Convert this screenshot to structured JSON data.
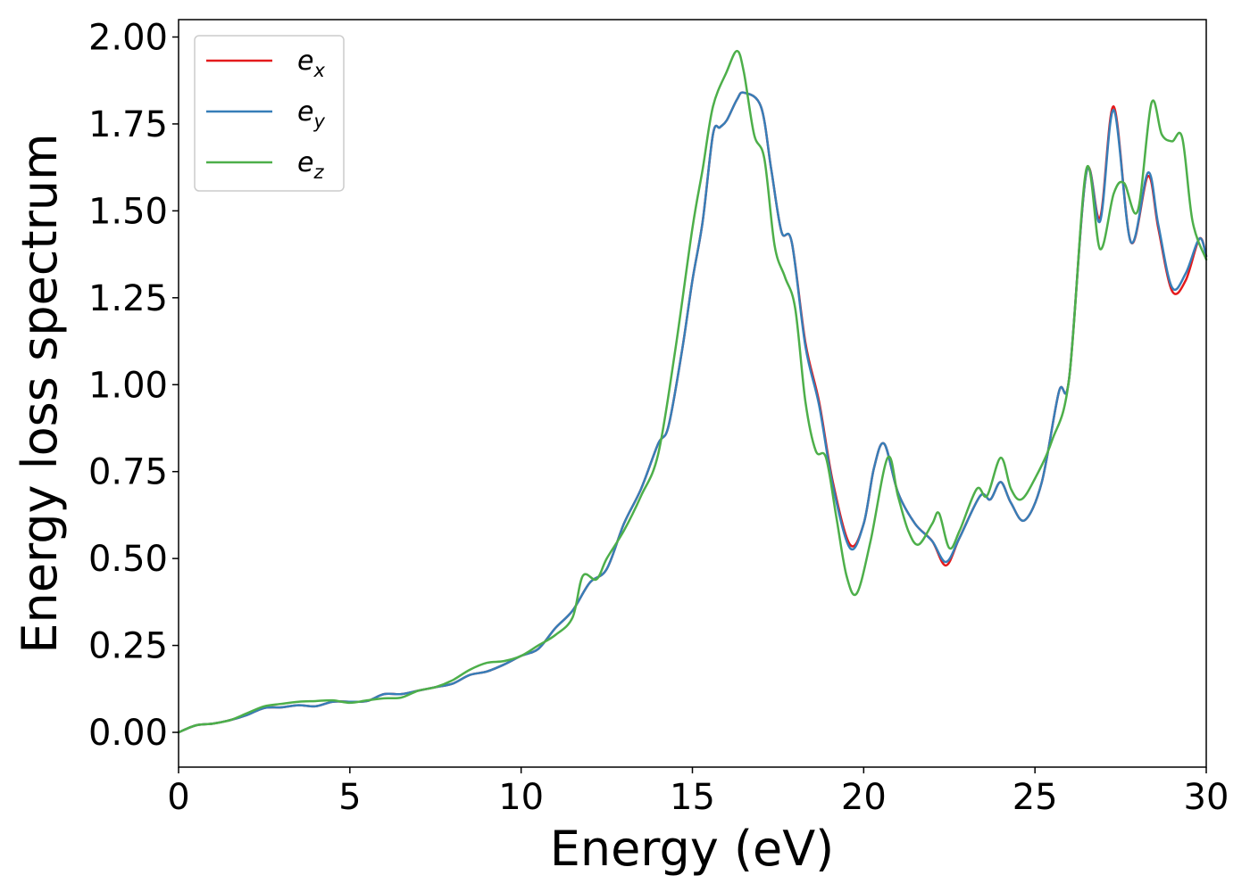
{
  "chart_data": {
    "type": "line",
    "title": "",
    "xlabel": "Energy (eV)",
    "ylabel": "Energy loss spectrum",
    "xlim": [
      0,
      30
    ],
    "ylim": [
      -0.1,
      2.05
    ],
    "xticks": [
      0,
      5,
      10,
      15,
      20,
      25,
      30
    ],
    "xtick_labels": [
      "0",
      "5",
      "10",
      "15",
      "20",
      "25",
      "30"
    ],
    "yticks": [
      0,
      0.25,
      0.5,
      0.75,
      1.0,
      1.25,
      1.5,
      1.75,
      2.0
    ],
    "ytick_labels": [
      "0.00",
      "0.25",
      "0.50",
      "0.75",
      "1.00",
      "1.25",
      "1.50",
      "1.75",
      "2.00"
    ],
    "grid": false,
    "legend_position": "top-left",
    "series": [
      {
        "name": "e_x",
        "label_main": "e",
        "label_sub": "x",
        "color": "#e41a1c",
        "points": [
          [
            0,
            0
          ],
          [
            0.5,
            0.02
          ],
          [
            1,
            0.025
          ],
          [
            1.5,
            0.035
          ],
          [
            2,
            0.05
          ],
          [
            2.5,
            0.07
          ],
          [
            3,
            0.072
          ],
          [
            3.5,
            0.078
          ],
          [
            4,
            0.075
          ],
          [
            4.5,
            0.088
          ],
          [
            5,
            0.088
          ],
          [
            5.5,
            0.09
          ],
          [
            6,
            0.11
          ],
          [
            6.5,
            0.11
          ],
          [
            7,
            0.12
          ],
          [
            7.5,
            0.13
          ],
          [
            8,
            0.14
          ],
          [
            8.5,
            0.165
          ],
          [
            9,
            0.175
          ],
          [
            9.5,
            0.195
          ],
          [
            10,
            0.22
          ],
          [
            10.5,
            0.24
          ],
          [
            11,
            0.3
          ],
          [
            11.5,
            0.35
          ],
          [
            12,
            0.43
          ],
          [
            12.5,
            0.47
          ],
          [
            13,
            0.6
          ],
          [
            13.5,
            0.7
          ],
          [
            14,
            0.83
          ],
          [
            14.3,
            0.88
          ],
          [
            14.7,
            1.1
          ],
          [
            15,
            1.3
          ],
          [
            15.3,
            1.47
          ],
          [
            15.6,
            1.72
          ],
          [
            15.8,
            1.74
          ],
          [
            16,
            1.76
          ],
          [
            16.3,
            1.82
          ],
          [
            16.5,
            1.84
          ],
          [
            17,
            1.8
          ],
          [
            17.3,
            1.62
          ],
          [
            17.6,
            1.44
          ],
          [
            17.9,
            1.41
          ],
          [
            18.3,
            1.12
          ],
          [
            18.7,
            0.95
          ],
          [
            19.1,
            0.72
          ],
          [
            19.6,
            0.54
          ],
          [
            20,
            0.6
          ],
          [
            20.3,
            0.76
          ],
          [
            20.6,
            0.83
          ],
          [
            21,
            0.69
          ],
          [
            21.5,
            0.6
          ],
          [
            22,
            0.55
          ],
          [
            22.4,
            0.48
          ],
          [
            22.8,
            0.56
          ],
          [
            23.4,
            0.68
          ],
          [
            23.7,
            0.67
          ],
          [
            24,
            0.72
          ],
          [
            24.3,
            0.66
          ],
          [
            24.7,
            0.61
          ],
          [
            25.2,
            0.72
          ],
          [
            25.7,
            0.98
          ],
          [
            26,
            1.02
          ],
          [
            26.5,
            1.61
          ],
          [
            26.9,
            1.48
          ],
          [
            27.3,
            1.8
          ],
          [
            27.8,
            1.41
          ],
          [
            28.3,
            1.6
          ],
          [
            28.6,
            1.45
          ],
          [
            29,
            1.27
          ],
          [
            29.4,
            1.3
          ],
          [
            29.8,
            1.42
          ],
          [
            30,
            1.37
          ]
        ]
      },
      {
        "name": "e_y",
        "label_main": "e",
        "label_sub": "y",
        "color": "#377eb8",
        "points": [
          [
            0,
            0
          ],
          [
            0.5,
            0.02
          ],
          [
            1,
            0.025
          ],
          [
            1.5,
            0.035
          ],
          [
            2,
            0.05
          ],
          [
            2.5,
            0.07
          ],
          [
            3,
            0.072
          ],
          [
            3.5,
            0.078
          ],
          [
            4,
            0.075
          ],
          [
            4.5,
            0.088
          ],
          [
            5,
            0.088
          ],
          [
            5.5,
            0.09
          ],
          [
            6,
            0.11
          ],
          [
            6.5,
            0.11
          ],
          [
            7,
            0.12
          ],
          [
            7.5,
            0.13
          ],
          [
            8,
            0.14
          ],
          [
            8.5,
            0.165
          ],
          [
            9,
            0.175
          ],
          [
            9.5,
            0.195
          ],
          [
            10,
            0.22
          ],
          [
            10.5,
            0.24
          ],
          [
            11,
            0.3
          ],
          [
            11.5,
            0.35
          ],
          [
            12,
            0.43
          ],
          [
            12.5,
            0.47
          ],
          [
            13,
            0.6
          ],
          [
            13.5,
            0.7
          ],
          [
            14,
            0.83
          ],
          [
            14.3,
            0.88
          ],
          [
            14.7,
            1.1
          ],
          [
            15,
            1.3
          ],
          [
            15.3,
            1.47
          ],
          [
            15.6,
            1.72
          ],
          [
            15.8,
            1.74
          ],
          [
            16,
            1.76
          ],
          [
            16.3,
            1.82
          ],
          [
            16.5,
            1.84
          ],
          [
            17,
            1.8
          ],
          [
            17.3,
            1.62
          ],
          [
            17.6,
            1.44
          ],
          [
            17.9,
            1.41
          ],
          [
            18.3,
            1.11
          ],
          [
            18.7,
            0.94
          ],
          [
            19.1,
            0.71
          ],
          [
            19.6,
            0.53
          ],
          [
            20,
            0.6
          ],
          [
            20.3,
            0.76
          ],
          [
            20.6,
            0.83
          ],
          [
            21,
            0.69
          ],
          [
            21.5,
            0.6
          ],
          [
            22,
            0.55
          ],
          [
            22.4,
            0.49
          ],
          [
            22.8,
            0.56
          ],
          [
            23.4,
            0.68
          ],
          [
            23.7,
            0.67
          ],
          [
            24,
            0.72
          ],
          [
            24.3,
            0.66
          ],
          [
            24.7,
            0.61
          ],
          [
            25.2,
            0.72
          ],
          [
            25.7,
            0.98
          ],
          [
            26,
            1.02
          ],
          [
            26.5,
            1.61
          ],
          [
            26.9,
            1.47
          ],
          [
            27.3,
            1.79
          ],
          [
            27.8,
            1.41
          ],
          [
            28.3,
            1.61
          ],
          [
            28.6,
            1.46
          ],
          [
            29,
            1.28
          ],
          [
            29.4,
            1.32
          ],
          [
            29.8,
            1.42
          ],
          [
            30,
            1.37
          ]
        ]
      },
      {
        "name": "e_z",
        "label_main": "e",
        "label_sub": "z",
        "color": "#4daf4a",
        "points": [
          [
            0,
            0
          ],
          [
            0.5,
            0.02
          ],
          [
            1,
            0.025
          ],
          [
            1.5,
            0.035
          ],
          [
            2,
            0.055
          ],
          [
            2.5,
            0.075
          ],
          [
            3,
            0.082
          ],
          [
            3.5,
            0.088
          ],
          [
            4,
            0.09
          ],
          [
            4.5,
            0.092
          ],
          [
            5,
            0.085
          ],
          [
            5.5,
            0.092
          ],
          [
            6,
            0.098
          ],
          [
            6.5,
            0.1
          ],
          [
            7,
            0.12
          ],
          [
            7.5,
            0.13
          ],
          [
            8,
            0.15
          ],
          [
            8.5,
            0.18
          ],
          [
            9,
            0.2
          ],
          [
            9.5,
            0.205
          ],
          [
            10,
            0.22
          ],
          [
            10.5,
            0.25
          ],
          [
            11,
            0.28
          ],
          [
            11.5,
            0.33
          ],
          [
            11.8,
            0.45
          ],
          [
            12.2,
            0.44
          ],
          [
            12.5,
            0.5
          ],
          [
            13,
            0.58
          ],
          [
            13.5,
            0.68
          ],
          [
            14,
            0.8
          ],
          [
            14.5,
            1.1
          ],
          [
            15,
            1.45
          ],
          [
            15.3,
            1.62
          ],
          [
            15.6,
            1.8
          ],
          [
            16,
            1.9
          ],
          [
            16.3,
            1.96
          ],
          [
            16.5,
            1.9
          ],
          [
            16.8,
            1.72
          ],
          [
            17.1,
            1.65
          ],
          [
            17.4,
            1.4
          ],
          [
            17.7,
            1.31
          ],
          [
            18,
            1.22
          ],
          [
            18.3,
            0.95
          ],
          [
            18.6,
            0.81
          ],
          [
            18.9,
            0.79
          ],
          [
            19.2,
            0.62
          ],
          [
            19.5,
            0.45
          ],
          [
            19.8,
            0.4
          ],
          [
            20.2,
            0.55
          ],
          [
            20.7,
            0.79
          ],
          [
            21,
            0.68
          ],
          [
            21.3,
            0.58
          ],
          [
            21.6,
            0.54
          ],
          [
            22,
            0.6
          ],
          [
            22.2,
            0.63
          ],
          [
            22.5,
            0.53
          ],
          [
            22.8,
            0.58
          ],
          [
            23.3,
            0.7
          ],
          [
            23.6,
            0.68
          ],
          [
            24,
            0.79
          ],
          [
            24.3,
            0.7
          ],
          [
            24.6,
            0.67
          ],
          [
            25,
            0.73
          ],
          [
            25.5,
            0.84
          ],
          [
            26,
            1.02
          ],
          [
            26.5,
            1.62
          ],
          [
            26.9,
            1.39
          ],
          [
            27.3,
            1.55
          ],
          [
            27.6,
            1.58
          ],
          [
            28,
            1.5
          ],
          [
            28.4,
            1.81
          ],
          [
            28.7,
            1.72
          ],
          [
            29,
            1.7
          ],
          [
            29.3,
            1.71
          ],
          [
            29.6,
            1.47
          ],
          [
            30,
            1.36
          ]
        ]
      }
    ]
  }
}
